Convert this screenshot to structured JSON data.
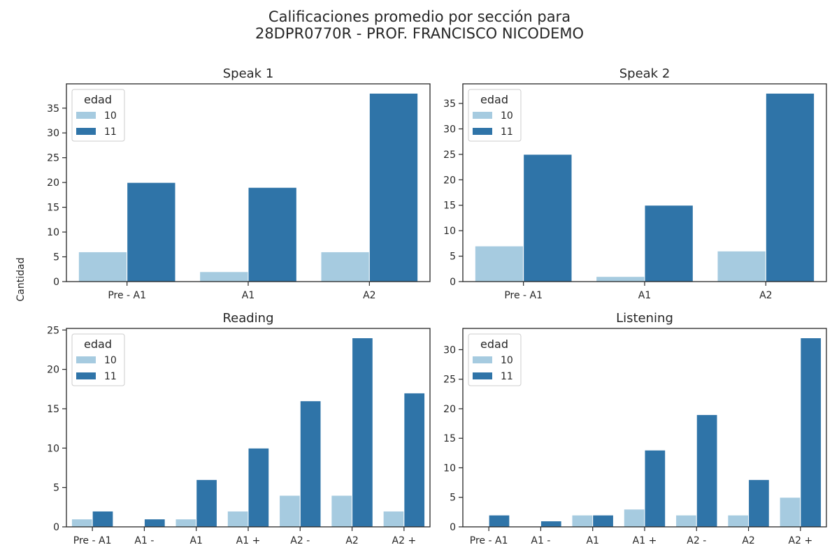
{
  "figure": {
    "title_line1": "Calificaciones promedio por sección para",
    "title_line2": "28DPR0770R - PROF. FRANCISCO NICODEMO",
    "ylabel": "Cantidad"
  },
  "colors": {
    "age10": "#a6cbe0",
    "age11": "#2f74a8"
  },
  "chart_data": [
    {
      "type": "bar",
      "title": "Speak 1",
      "categories": [
        "Pre - A1",
        "A1",
        "A2"
      ],
      "legend_title": "edad",
      "legend_position": "top-left",
      "series": [
        {
          "name": "10",
          "values": [
            6,
            2,
            6
          ]
        },
        {
          "name": "11",
          "values": [
            20,
            19,
            38
          ]
        }
      ],
      "ylim": [
        0,
        39.9
      ],
      "yticks": [
        0,
        5,
        10,
        15,
        20,
        25,
        30,
        35
      ]
    },
    {
      "type": "bar",
      "title": "Speak 2",
      "categories": [
        "Pre - A1",
        "A1",
        "A2"
      ],
      "legend_title": "edad",
      "legend_position": "top-left",
      "series": [
        {
          "name": "10",
          "values": [
            7,
            1,
            6
          ]
        },
        {
          "name": "11",
          "values": [
            25,
            15,
            37
          ]
        }
      ],
      "ylim": [
        0,
        38.85
      ],
      "yticks": [
        0,
        5,
        10,
        15,
        20,
        25,
        30,
        35
      ]
    },
    {
      "type": "bar",
      "title": "Reading",
      "categories": [
        "Pre - A1",
        "A1 -",
        "A1",
        "A1 +",
        "A2 -",
        "A2",
        "A2 +"
      ],
      "legend_title": "edad",
      "legend_position": "top-left",
      "series": [
        {
          "name": "10",
          "values": [
            1,
            0,
            1,
            2,
            4,
            4,
            2
          ]
        },
        {
          "name": "11",
          "values": [
            2,
            1,
            6,
            10,
            16,
            24,
            17
          ]
        }
      ],
      "ylim": [
        0,
        25.2
      ],
      "yticks": [
        0,
        5,
        10,
        15,
        20,
        25
      ]
    },
    {
      "type": "bar",
      "title": "Listening",
      "categories": [
        "Pre - A1",
        "A1 -",
        "A1",
        "A1 +",
        "A2 -",
        "A2",
        "A2 +"
      ],
      "legend_title": "edad",
      "legend_position": "top-left",
      "series": [
        {
          "name": "10",
          "values": [
            0,
            0,
            2,
            3,
            2,
            2,
            5
          ]
        },
        {
          "name": "11",
          "values": [
            2,
            1,
            2,
            13,
            19,
            8,
            32
          ]
        }
      ],
      "ylim": [
        0,
        33.6
      ],
      "yticks": [
        0,
        5,
        10,
        15,
        20,
        25,
        30
      ]
    }
  ]
}
